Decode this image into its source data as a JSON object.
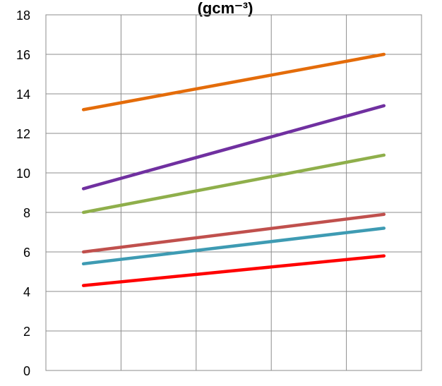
{
  "chart_data": {
    "type": "line",
    "title": "(gcm⁻³)",
    "xlabel": "",
    "ylabel": "",
    "ylim": [
      0,
      18
    ],
    "yticks": [
      0,
      2,
      4,
      6,
      8,
      10,
      12,
      14,
      16,
      18
    ],
    "x_categories": 5,
    "grid": true,
    "legend": "none",
    "series": [
      {
        "color": "#e46c0a",
        "values": [
          13.2,
          16.0
        ]
      },
      {
        "color": "#7030a0",
        "values": [
          9.2,
          13.4
        ]
      },
      {
        "color": "#8faf4b",
        "values": [
          8.0,
          10.9
        ]
      },
      {
        "color": "#c0504d",
        "values": [
          6.0,
          7.9
        ]
      },
      {
        "color": "#3e9bb3",
        "values": [
          5.4,
          7.2
        ]
      },
      {
        "color": "#ff0000",
        "values": [
          4.3,
          5.8
        ]
      }
    ]
  }
}
